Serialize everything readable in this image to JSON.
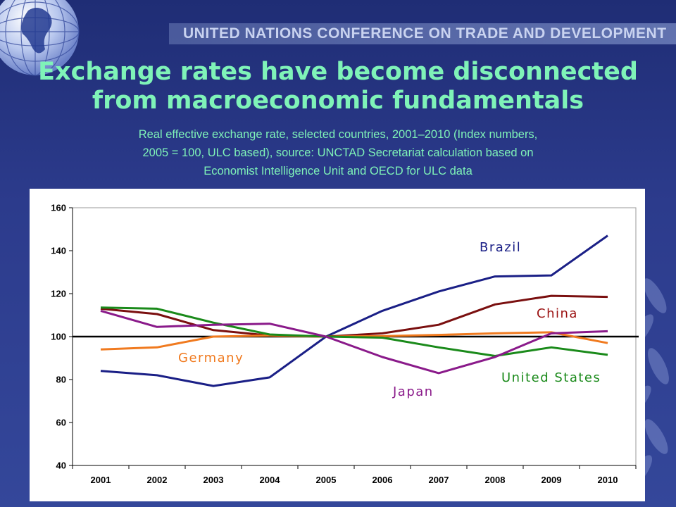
{
  "header": {
    "org_name": "UNITED NATIONS CONFERENCE ON TRADE AND DEVELOPMENT"
  },
  "slide": {
    "title_line1": "Exchange rates have become disconnected",
    "title_line2": "from macroeconomic fundamentals",
    "subtitle_line1": "Real effective exchange rate, selected countries, 2001–2010 (Index numbers,",
    "subtitle_line2": "2005 = 100, ULC based), source: UNCTAD Secretariat calculation based on",
    "subtitle_line3": "Economist Intelligence Unit and OECD for ULC data"
  },
  "colors": {
    "title": "#7ff3b8",
    "background": "#2c3b8c"
  },
  "icons": {
    "logo": "un-globe-icon",
    "decoration": "laurel-branch-icon"
  },
  "chart_data": {
    "type": "line",
    "x": [
      "2001",
      "2002",
      "2003",
      "2004",
      "2005",
      "2006",
      "2007",
      "2008",
      "2009",
      "2010"
    ],
    "ylim": [
      40,
      160
    ],
    "yticks": [
      40,
      60,
      80,
      100,
      120,
      140,
      160
    ],
    "reference_line": 100,
    "grid": false,
    "legend": "inline labels",
    "series": [
      {
        "name": "Brazil",
        "color": "#1a1f86",
        "label_color": "#1a1f86",
        "values": [
          84,
          82,
          77,
          81,
          100,
          112,
          121,
          128,
          128.5,
          147
        ]
      },
      {
        "name": "China",
        "color": "#7a0f0f",
        "label_color": "#9b1212",
        "values": [
          113,
          110.5,
          103,
          100.5,
          100,
          101.5,
          105.5,
          115,
          119,
          118.5
        ]
      },
      {
        "name": "Germany",
        "color": "#f07a1f",
        "label_color": "#f07a1f",
        "values": [
          94,
          95,
          100,
          100.5,
          100,
          100.2,
          100.8,
          101.5,
          102,
          97
        ]
      },
      {
        "name": "United States",
        "color": "#1a8a1a",
        "label_color": "#1a8a1a",
        "values": [
          113.5,
          113,
          106.5,
          101,
          100,
          99.5,
          95,
          91,
          95,
          91.5
        ]
      },
      {
        "name": "Japan",
        "color": "#8a1a8a",
        "label_color": "#8a1a8a",
        "values": [
          112,
          104.5,
          105.5,
          106,
          100,
          90.5,
          83,
          90.5,
          101.5,
          102.5
        ]
      }
    ]
  }
}
